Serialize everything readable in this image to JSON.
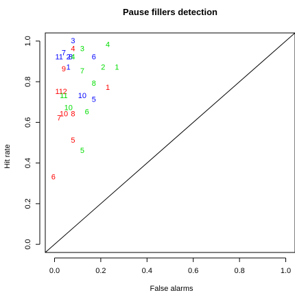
{
  "chart_data": {
    "type": "scatter",
    "title": "Pause fillers detection",
    "xlabel": "False alarms",
    "ylabel": "Hit rate",
    "xlim": [
      -0.04,
      1.04
    ],
    "ylim": [
      -0.04,
      1.04
    ],
    "x_ticks": [
      "0.0",
      "0.2",
      "0.4",
      "0.6",
      "0.8",
      "1.0"
    ],
    "y_ticks": [
      "0.0",
      "0.2",
      "0.4",
      "0.6",
      "0.8",
      "1.0"
    ],
    "reference_line": {
      "from": [
        0,
        0
      ],
      "to": [
        1,
        1
      ]
    },
    "grid": false,
    "series": [
      {
        "color": "#ff0000",
        "points": [
          {
            "label": "4",
            "x": 0.08,
            "y": 0.96
          },
          {
            "label": "9",
            "x": 0.04,
            "y": 0.86
          },
          {
            "label": "11",
            "x": 0.02,
            "y": 0.75
          },
          {
            "label": "2",
            "x": 0.045,
            "y": 0.75
          },
          {
            "label": "1",
            "x": 0.23,
            "y": 0.77
          },
          {
            "label": "7",
            "x": 0.02,
            "y": 0.62
          },
          {
            "label": "10",
            "x": 0.04,
            "y": 0.64
          },
          {
            "label": "8",
            "x": 0.08,
            "y": 0.64
          },
          {
            "label": "5",
            "x": 0.08,
            "y": 0.51
          },
          {
            "label": "6",
            "x": -0.005,
            "y": 0.33
          }
        ]
      },
      {
        "color": "#0000ff",
        "points": [
          {
            "label": "3",
            "x": 0.08,
            "y": 1.0
          },
          {
            "label": "11",
            "x": 0.02,
            "y": 0.92
          },
          {
            "label": "7",
            "x": 0.04,
            "y": 0.94
          },
          {
            "label": "2",
            "x": 0.06,
            "y": 0.92
          },
          {
            "label": "8",
            "x": 0.07,
            "y": 0.92
          },
          {
            "label": "6",
            "x": 0.17,
            "y": 0.92
          },
          {
            "label": "1",
            "x": 0.06,
            "y": 0.87
          },
          {
            "label": "10",
            "x": 0.12,
            "y": 0.73
          },
          {
            "label": "5",
            "x": 0.17,
            "y": 0.71
          }
        ]
      },
      {
        "color": "#00dd00",
        "points": [
          {
            "label": "4",
            "x": 0.23,
            "y": 0.98
          },
          {
            "label": "3",
            "x": 0.12,
            "y": 0.96
          },
          {
            "label": "4",
            "x": 0.08,
            "y": 0.92
          },
          {
            "label": "2",
            "x": 0.21,
            "y": 0.87
          },
          {
            "label": "1",
            "x": 0.27,
            "y": 0.87
          },
          {
            "label": "7",
            "x": 0.12,
            "y": 0.85
          },
          {
            "label": "8",
            "x": 0.17,
            "y": 0.79
          },
          {
            "label": "11",
            "x": 0.04,
            "y": 0.73
          },
          {
            "label": "10",
            "x": 0.06,
            "y": 0.67
          },
          {
            "label": "6",
            "x": 0.14,
            "y": 0.65
          },
          {
            "label": "5",
            "x": 0.12,
            "y": 0.46
          }
        ]
      }
    ]
  }
}
